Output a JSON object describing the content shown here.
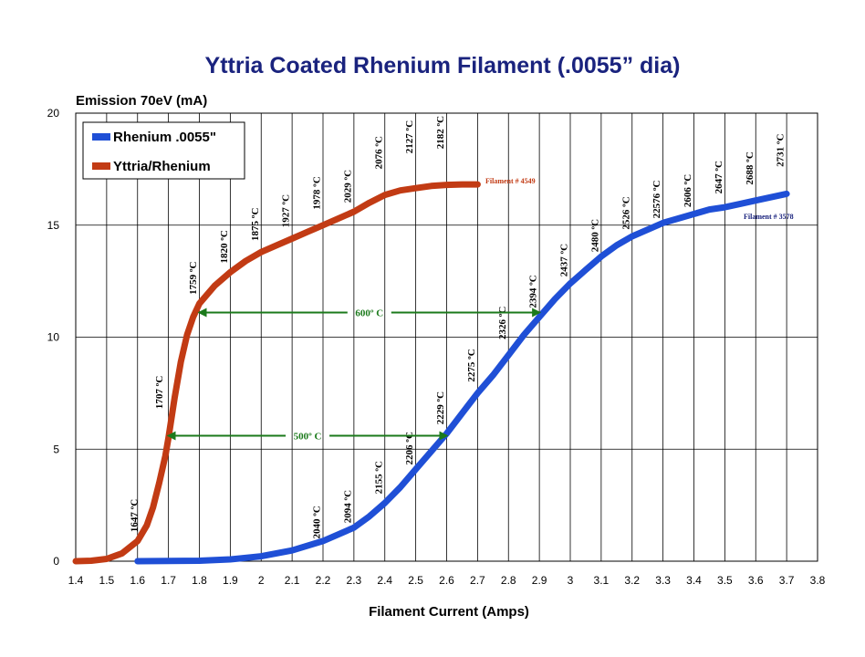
{
  "chart_data": {
    "type": "line",
    "title": "Yttria Coated Rhenium Filament (.0055” dia)",
    "ylabel": "Emission 70eV (mA)",
    "xlabel": "Filament Current (Amps)",
    "xlim": [
      1.4,
      3.8
    ],
    "ylim": [
      0,
      20
    ],
    "x_ticks": [
      "1.4",
      "1.5",
      "1.6",
      "1.7",
      "1.8",
      "1.9",
      "2",
      "2.1",
      "2.2",
      "2.3",
      "2.4",
      "2.5",
      "2.6",
      "2.7",
      "2.8",
      "2.9",
      "3",
      "3.1",
      "3.2",
      "3.3",
      "3.4",
      "3.5",
      "3.6",
      "3.7",
      "3.8"
    ],
    "y_ticks": [
      "0",
      "5",
      "10",
      "15",
      "20"
    ],
    "grid": true,
    "legend_position": "top-left",
    "series": [
      {
        "name": "Rhenium .0055\"",
        "color": "#1f4fd6",
        "tag": "Filament # 3578",
        "x": [
          1.6,
          1.8,
          1.9,
          2.0,
          2.1,
          2.2,
          2.3,
          2.35,
          2.4,
          2.45,
          2.5,
          2.55,
          2.6,
          2.65,
          2.7,
          2.75,
          2.8,
          2.85,
          2.9,
          2.95,
          3.0,
          3.05,
          3.1,
          3.15,
          3.2,
          3.25,
          3.3,
          3.35,
          3.4,
          3.45,
          3.5,
          3.55,
          3.6,
          3.65,
          3.7
        ],
        "y": [
          0.0,
          0.02,
          0.08,
          0.22,
          0.48,
          0.9,
          1.5,
          2.0,
          2.6,
          3.3,
          4.1,
          4.9,
          5.7,
          6.6,
          7.5,
          8.3,
          9.2,
          10.1,
          10.9,
          11.7,
          12.4,
          13.0,
          13.6,
          14.1,
          14.5,
          14.8,
          15.1,
          15.3,
          15.5,
          15.7,
          15.8,
          15.95,
          16.1,
          16.25,
          16.4
        ]
      },
      {
        "name": "Yttria/Rhenium",
        "color": "#c23b14",
        "tag": "Filament # 4549",
        "x": [
          1.4,
          1.45,
          1.5,
          1.55,
          1.6,
          1.63,
          1.65,
          1.67,
          1.69,
          1.7,
          1.72,
          1.74,
          1.76,
          1.78,
          1.8,
          1.85,
          1.9,
          1.95,
          2.0,
          2.05,
          2.1,
          2.15,
          2.2,
          2.25,
          2.3,
          2.35,
          2.4,
          2.45,
          2.5,
          2.55,
          2.6,
          2.65,
          2.7
        ],
        "y": [
          0.0,
          0.02,
          0.1,
          0.35,
          0.9,
          1.6,
          2.4,
          3.5,
          4.7,
          5.5,
          7.3,
          8.9,
          10.1,
          10.9,
          11.5,
          12.3,
          12.9,
          13.4,
          13.8,
          14.1,
          14.4,
          14.7,
          15.0,
          15.3,
          15.6,
          16.0,
          16.35,
          16.55,
          16.65,
          16.75,
          16.8,
          16.82,
          16.82
        ]
      }
    ],
    "temperature_labels": [
      {
        "text": "1647 ºC",
        "x": 1.6,
        "y": 1.3
      },
      {
        "text": "1707 ºC",
        "x": 1.68,
        "y": 6.8
      },
      {
        "text": "1759 ºC",
        "x": 1.79,
        "y": 11.9
      },
      {
        "text": "1820 ºC",
        "x": 1.89,
        "y": 13.3
      },
      {
        "text": "1875 ºC",
        "x": 1.99,
        "y": 14.3
      },
      {
        "text": "1927 ºC",
        "x": 2.09,
        "y": 14.9
      },
      {
        "text": "1978 ºC",
        "x": 2.19,
        "y": 15.7
      },
      {
        "text": "2029 ºC",
        "x": 2.29,
        "y": 16.0
      },
      {
        "text": "2076 ºC",
        "x": 2.39,
        "y": 17.5
      },
      {
        "text": "2127 ºC",
        "x": 2.49,
        "y": 18.2
      },
      {
        "text": "2182 ºC",
        "x": 2.59,
        "y": 18.4
      },
      {
        "text": "2040 ºC",
        "x": 2.19,
        "y": 1.0
      },
      {
        "text": "2094 ºC",
        "x": 2.29,
        "y": 1.7
      },
      {
        "text": "2155 ºC",
        "x": 2.39,
        "y": 3.0
      },
      {
        "text": "2206 ºC",
        "x": 2.49,
        "y": 4.3
      },
      {
        "text": "2229 ºC",
        "x": 2.59,
        "y": 6.1
      },
      {
        "text": "2275 ºC",
        "x": 2.69,
        "y": 8.0
      },
      {
        "text": "2326 ºC",
        "x": 2.79,
        "y": 9.9
      },
      {
        "text": "2394 ºC",
        "x": 2.89,
        "y": 11.3
      },
      {
        "text": "2437 ºC",
        "x": 2.99,
        "y": 12.7
      },
      {
        "text": "2480 ºC",
        "x": 3.09,
        "y": 13.8
      },
      {
        "text": "2526 ºC",
        "x": 3.19,
        "y": 14.8
      },
      {
        "text": "22576 ºC",
        "x": 3.29,
        "y": 15.3
      },
      {
        "text": "2606 ºC",
        "x": 3.39,
        "y": 15.8
      },
      {
        "text": "2647 ºC",
        "x": 3.49,
        "y": 16.4
      },
      {
        "text": "2688 ºC",
        "x": 3.59,
        "y": 16.8
      },
      {
        "text": "2731 ºC",
        "x": 3.69,
        "y": 17.6
      }
    ],
    "annotations": [
      {
        "text": "600º C",
        "y": 11.1,
        "x_from": 1.8,
        "x_to": 2.9
      },
      {
        "text": "500º C",
        "y": 5.6,
        "x_from": 1.7,
        "x_to": 2.6
      }
    ]
  }
}
